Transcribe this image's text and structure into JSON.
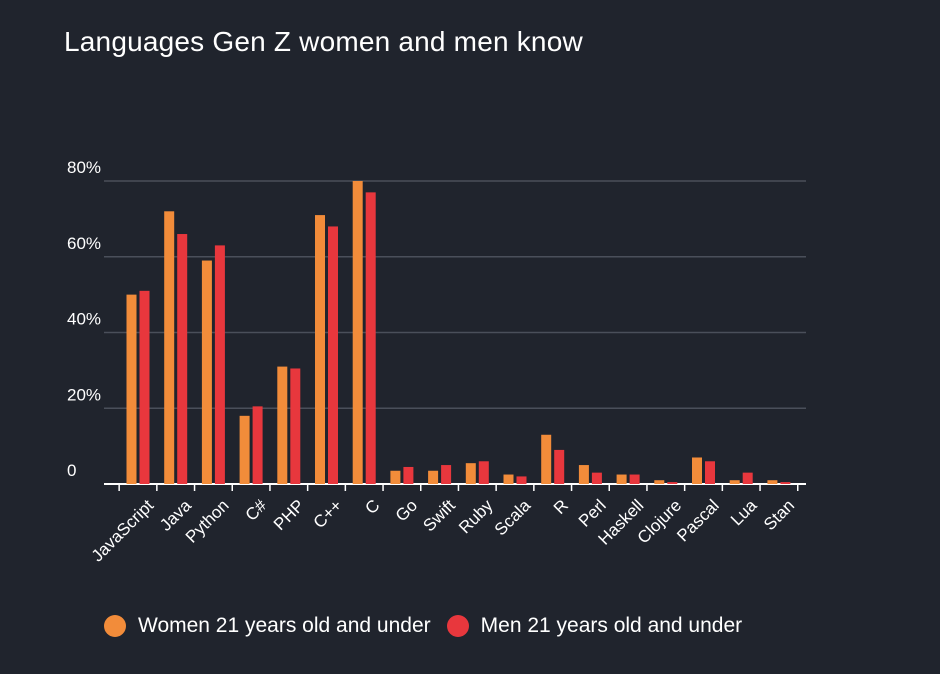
{
  "chart_data": {
    "type": "bar",
    "title": "Languages Gen Z women and men know",
    "categories": [
      "JavaScript",
      "Java",
      "Python",
      "C#",
      "PHP",
      "C++",
      "C",
      "Go",
      "Swift",
      "Ruby",
      "Scala",
      "R",
      "Perl",
      "Haskell",
      "Clojure",
      "Pascal",
      "Lua",
      "Stan"
    ],
    "series": [
      {
        "name": "Women 21 years old and under",
        "color": "#f28c3a",
        "values": [
          50,
          72,
          59,
          18,
          31,
          71,
          80,
          3.5,
          3.5,
          5.5,
          2.5,
          13,
          5,
          2.5,
          1,
          7,
          1,
          1
        ]
      },
      {
        "name": "Men 21 years old and under",
        "color": "#e8373d",
        "values": [
          51,
          66,
          63,
          20.5,
          30.5,
          68,
          77,
          4.5,
          5,
          6,
          2,
          9,
          3,
          2.5,
          0.5,
          6,
          3,
          0.5
        ]
      }
    ],
    "yticks": [
      "0",
      "20%",
      "40%",
      "60%",
      "80%"
    ],
    "ylim": [
      0,
      80
    ],
    "grid": true,
    "legend_position": "bottom",
    "xlabel": "",
    "ylabel": ""
  }
}
